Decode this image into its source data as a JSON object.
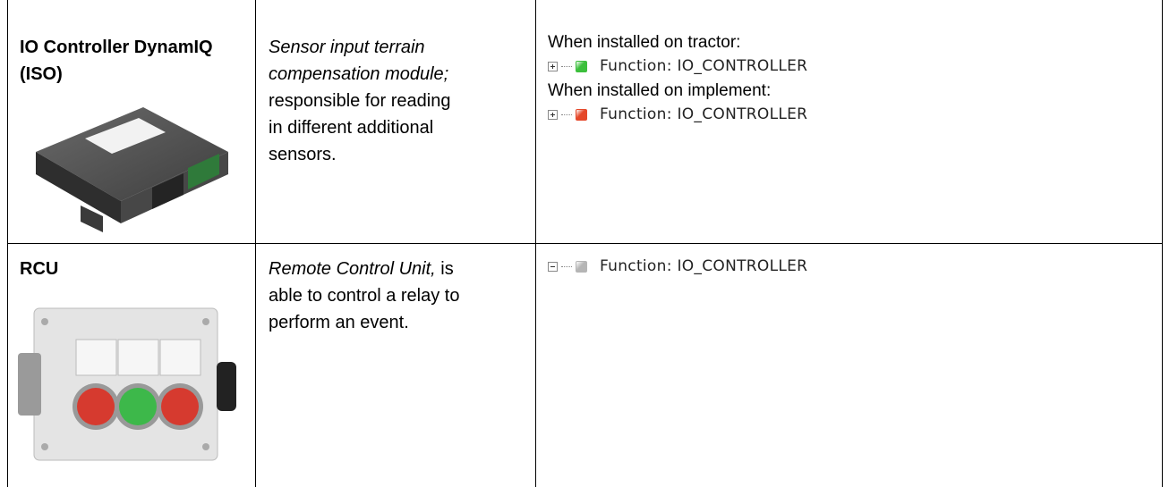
{
  "table": {
    "rows": [
      {
        "title": "IO Controller DynamIQ (ISO)",
        "description": [
          [
            {
              "text": "Sensor input terrain",
              "italic": true
            }
          ],
          [
            {
              "text": "compensation module;",
              "italic": true
            }
          ],
          [
            {
              "text": "responsible for reading"
            }
          ],
          [
            {
              "text": "in different additional"
            }
          ],
          [
            {
              "text": "sensors."
            }
          ]
        ],
        "status": [
          {
            "caption": "When installed on tractor:"
          },
          {
            "node": {
              "expanded": false,
              "color": "#3cbf3c",
              "label": "Function: IO_CONTROLLER"
            }
          },
          {
            "caption": "When installed on implement:"
          },
          {
            "node": {
              "expanded": false,
              "color": "#e5482a",
              "label": "Function: IO_CONTROLLER"
            }
          }
        ]
      },
      {
        "title": "RCU",
        "description": [
          [
            {
              "text": "Remote Control Unit,",
              "italic": true
            },
            {
              "text": " is"
            }
          ],
          [
            {
              "text": "able to control a relay to"
            }
          ],
          [
            {
              "text": "perform an event."
            }
          ]
        ],
        "status": [
          {
            "node": {
              "expanded": true,
              "color": "#b5b5b5",
              "label": "Function: IO_CONTROLLER"
            }
          }
        ]
      }
    ]
  }
}
